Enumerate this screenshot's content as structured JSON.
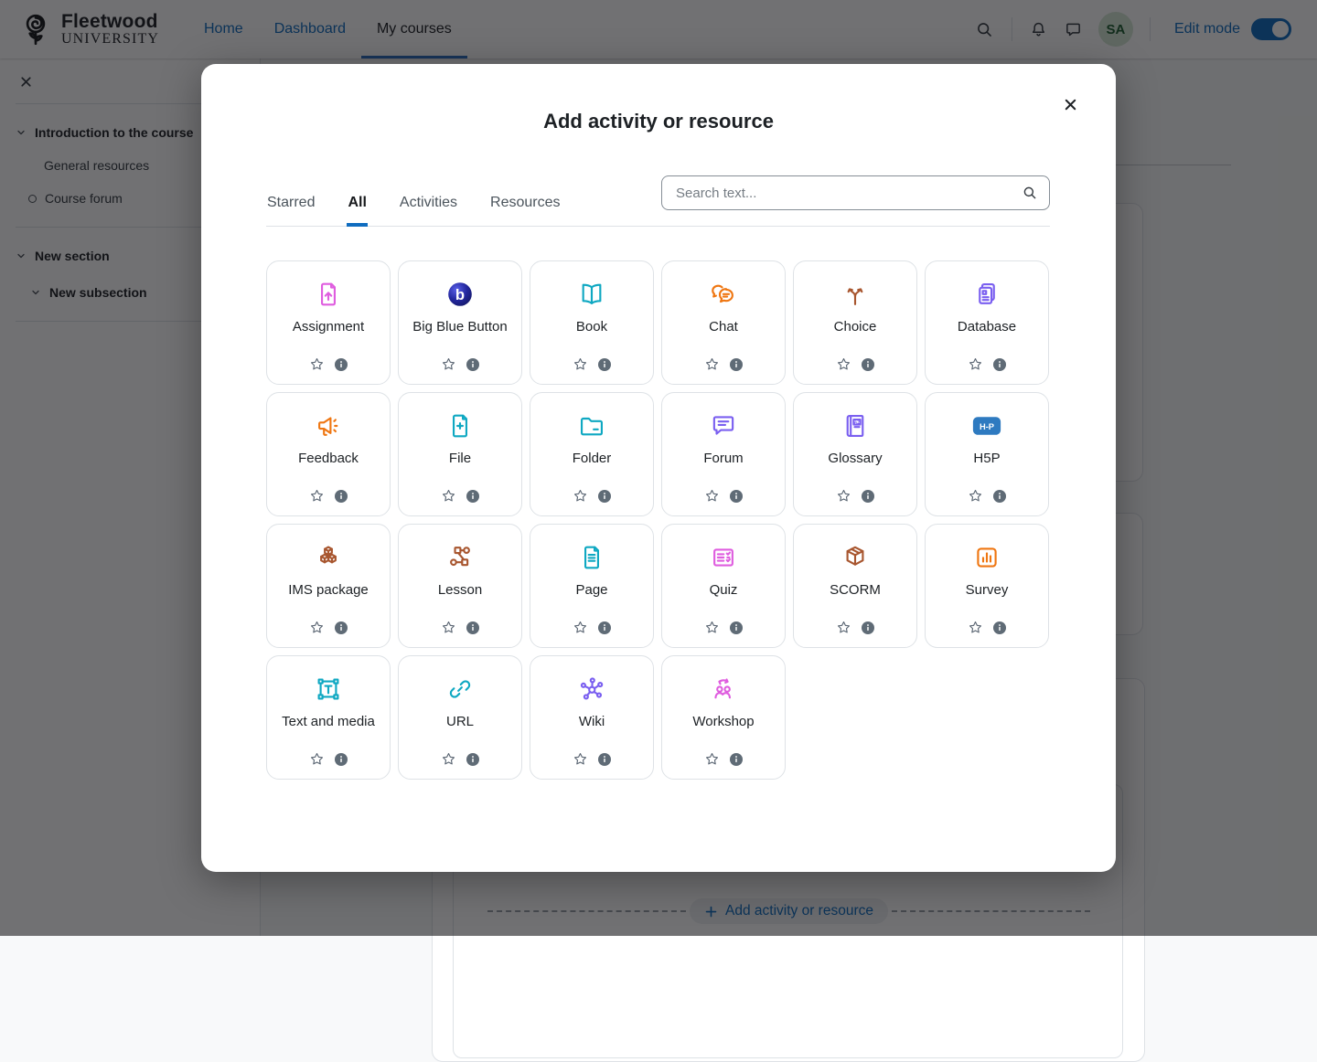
{
  "navbar": {
    "brand": {
      "line1": "Fleetwood",
      "line2": "UNIVERSITY"
    },
    "links": [
      {
        "label": "Home",
        "active": false
      },
      {
        "label": "Dashboard",
        "active": false
      },
      {
        "label": "My courses",
        "active": true
      }
    ],
    "avatar_initials": "SA",
    "edit_mode_label": "Edit mode",
    "edit_mode_on": true
  },
  "course_index": {
    "items": [
      {
        "type": "divider"
      },
      {
        "type": "section",
        "label": "Introduction to the course"
      },
      {
        "type": "item",
        "label": "General resources"
      },
      {
        "type": "item-bullet",
        "label": "Course forum"
      },
      {
        "type": "divider"
      },
      {
        "type": "section",
        "label": "New section"
      },
      {
        "type": "subsection",
        "label": "New subsection"
      },
      {
        "type": "divider"
      }
    ]
  },
  "page": {
    "add_button_label": "Add activity or resource"
  },
  "modal": {
    "title": "Add activity or resource",
    "search_placeholder": "Search text...",
    "tabs": [
      {
        "label": "Starred",
        "active": false
      },
      {
        "label": "All",
        "active": true
      },
      {
        "label": "Activities",
        "active": false
      },
      {
        "label": "Resources",
        "active": false
      }
    ],
    "items": [
      {
        "label": "Assignment",
        "icon": "assignment-icon",
        "color": "#df5ddf"
      },
      {
        "label": "Big Blue Button",
        "icon": "bigbluebutton-icon",
        "color": "#23279e"
      },
      {
        "label": "Book",
        "icon": "book-icon",
        "color": "#0fa8c2"
      },
      {
        "label": "Chat",
        "icon": "chat-icon",
        "color": "#ef7611"
      },
      {
        "label": "Choice",
        "icon": "choice-icon",
        "color": "#a8562f"
      },
      {
        "label": "Database",
        "icon": "database-icon",
        "color": "#7a5ff0"
      },
      {
        "label": "Feedback",
        "icon": "feedback-icon",
        "color": "#ef7611"
      },
      {
        "label": "File",
        "icon": "file-icon",
        "color": "#0fa8c2"
      },
      {
        "label": "Folder",
        "icon": "folder-icon",
        "color": "#0fa8c2"
      },
      {
        "label": "Forum",
        "icon": "forum-icon",
        "color": "#7a5ff0"
      },
      {
        "label": "Glossary",
        "icon": "glossary-icon",
        "color": "#7a5ff0"
      },
      {
        "label": "H5P",
        "icon": "h5p-icon",
        "color": "#2e7ac0"
      },
      {
        "label": "IMS package",
        "icon": "ims-package-icon",
        "color": "#a8562f"
      },
      {
        "label": "Lesson",
        "icon": "lesson-icon",
        "color": "#a8562f"
      },
      {
        "label": "Page",
        "icon": "page-icon",
        "color": "#0fa8c2"
      },
      {
        "label": "Quiz",
        "icon": "quiz-icon",
        "color": "#df5ddf"
      },
      {
        "label": "SCORM",
        "icon": "scorm-icon",
        "color": "#a8562f"
      },
      {
        "label": "Survey",
        "icon": "survey-icon",
        "color": "#ef7611"
      },
      {
        "label": "Text and media",
        "icon": "text-media-icon",
        "color": "#0fa8c2"
      },
      {
        "label": "URL",
        "icon": "url-icon",
        "color": "#0fa8c2"
      },
      {
        "label": "Wiki",
        "icon": "wiki-icon",
        "color": "#7a5ff0"
      },
      {
        "label": "Workshop",
        "icon": "workshop-icon",
        "color": "#df5ddf"
      }
    ]
  },
  "colors": {
    "primary": "#0f6cbf",
    "tile_border": "#dee2e6",
    "overlay": "rgba(10,11,13,0.58)"
  }
}
